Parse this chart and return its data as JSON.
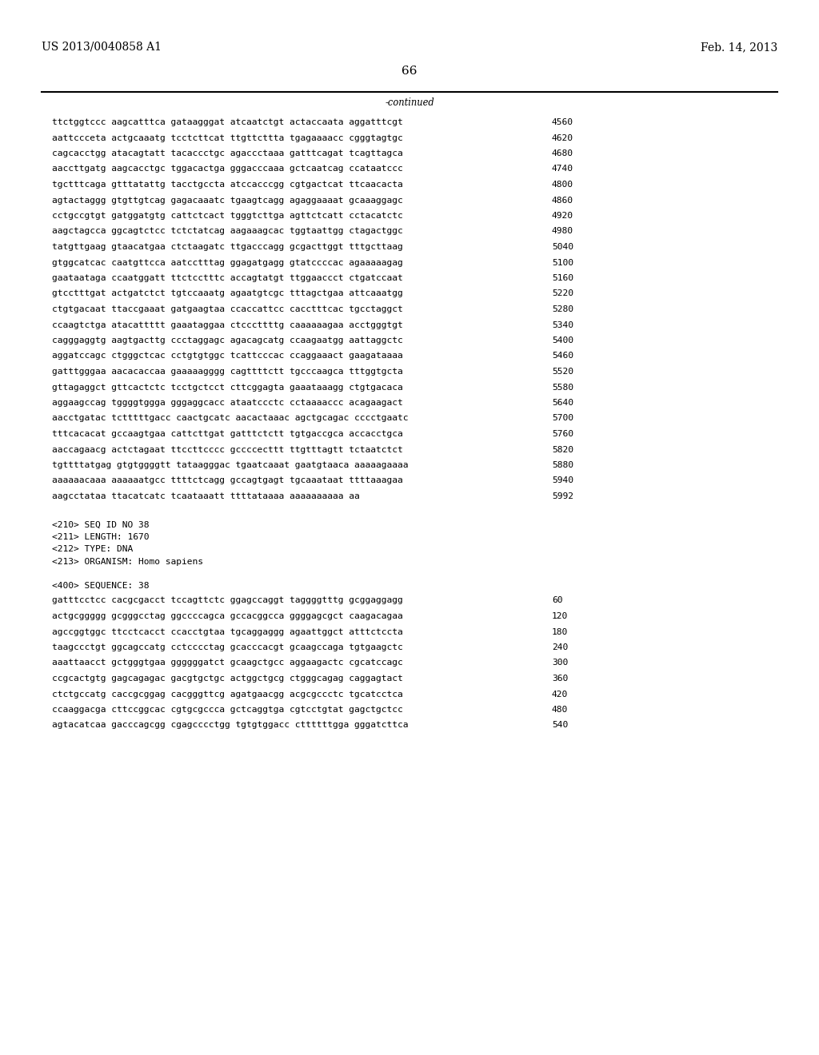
{
  "header_left": "US 2013/0040858 A1",
  "header_right": "Feb. 14, 2013",
  "page_number": "66",
  "continued_text": "-continued",
  "background_color": "#ffffff",
  "text_color": "#000000",
  "sequence_lines_top": [
    [
      "ttctggtccc aagcatttca gataagggat atcaatctgt actaccaata aggatttcgt",
      "4560"
    ],
    [
      "aattccceta actgcaaatg tcctcttcat ttgttcttta tgagaaaacc cgggtagtgc",
      "4620"
    ],
    [
      "cagcacctgg atacagtatt tacaccctgc agaccctaaa gatttcagat tcagttagca",
      "4680"
    ],
    [
      "aaccttgatg aagcacctgc tggacactga gggacccaaa gctcaatcag ccataatccc",
      "4740"
    ],
    [
      "tgctttcaga gtttatattg tacctgccta atccacccgg cgtgactcat ttcaacacta",
      "4800"
    ],
    [
      "agtactaggg gtgttgtcag gagacaaatc tgaagtcagg agaggaaaat gcaaaggagc",
      "4860"
    ],
    [
      "cctgccgtgt gatggatgtg cattctcact tgggtcttga agttctcatt cctacatctc",
      "4920"
    ],
    [
      "aagctagcca ggcagtctcc tctctatcag aagaaagcac tggtaattgg ctagactggc",
      "4980"
    ],
    [
      "tatgttgaag gtaacatgaa ctctaagatc ttgacccagg gcgacttggt tttgcttaag",
      "5040"
    ],
    [
      "gtggcatcac caatgttcca aatcctttag ggagatgagg gtatccccac agaaaaagag",
      "5100"
    ],
    [
      "gaataataga ccaatggatt ttctcctttc accagtatgt ttggaaccct ctgatccaat",
      "5160"
    ],
    [
      "gtcctttgat actgatctct tgtccaaatg agaatgtcgc tttagctgaa attcaaatgg",
      "5220"
    ],
    [
      "ctgtgacaat ttaccgaaat gatgaagtaa ccaccattcc cacctttcac tgcctaggct",
      "5280"
    ],
    [
      "ccaagtctga atacattttt gaaataggaa ctcccttttg caaaaaagaa acctgggtgt",
      "5340"
    ],
    [
      "cagggaggtg aagtgacttg ccctaggagc agacagcatg ccaagaatgg aattaggctc",
      "5400"
    ],
    [
      "aggatccagc ctgggctcac cctgtgtggc tcattcccac ccaggaaact gaagataaaa",
      "5460"
    ],
    [
      "gatttgggaa aacacaccaa gaaaaagggg cagttttctt tgcccaagca tttggtgcta",
      "5520"
    ],
    [
      "gttagaggct gttcactctc tcctgctcct cttcggagta gaaataaagg ctgtgacaca",
      "5580"
    ],
    [
      "aggaagccag tggggtggga gggaggcacc ataatccctc cctaaaaccc acagaagact",
      "5640"
    ],
    [
      "aacctgatac tctttttgacc caactgcatc aacactaaac agctgcagac cccctgaatc",
      "5700"
    ],
    [
      "tttcacacat gccaagtgaa cattcttgat gatttctctt tgtgaccgca accacctgca",
      "5760"
    ],
    [
      "aaccagaacg actctagaat ttccttcccc gccccecttt ttgtttagtt tctaatctct",
      "5820"
    ],
    [
      "tgttttatgag gtgtggggtt tataagggac tgaatcaaat gaatgtaaca aaaaagaaaa",
      "5880"
    ],
    [
      "aaaaaacaaa aaaaaatgcc ttttctcagg gccagtgagt tgcaaataat ttttaaagaa",
      "5940"
    ],
    [
      "aagcctataa ttacatcatc tcaataaatt ttttataaaa aaaaaaaaaa aa",
      "5992"
    ]
  ],
  "metadata_lines": [
    "<210> SEQ ID NO 38",
    "<211> LENGTH: 1670",
    "<212> TYPE: DNA",
    "<213> ORGANISM: Homo sapiens"
  ],
  "sequence_label": "<400> SEQUENCE: 38",
  "sequence_lines_bottom": [
    [
      "gatttcctcc cacgcgacct tccagttctc ggagccaggt taggggtttg gcggaggagg",
      "60"
    ],
    [
      "actgcggggg gcgggcctag ggccccagca gccacggcca ggggagcgct caagacagaa",
      "120"
    ],
    [
      "agccggtggc ttcctcacct ccacctgtaa tgcaggaggg agaattggct atttctccta",
      "180"
    ],
    [
      "taagccctgt ggcagccatg cctcccctag gcacccacgt gcaagccaga tgtgaagctc",
      "240"
    ],
    [
      "aaattaacct gctgggtgaa ggggggatct gcaagctgcc aggaagactc cgcatccagc",
      "300"
    ],
    [
      "ccgcactgtg gagcagagac gacgtgctgc actggctgcg ctgggcagag caggagtact",
      "360"
    ],
    [
      "ctctgccatg caccgcggag cacgggttcg agatgaacgg acgcgccctc tgcatcctca",
      "420"
    ],
    [
      "ccaaggacga cttccggcac cgtgcgccca gctcaggtga cgtcctgtat gagctgctcc",
      "480"
    ],
    [
      "agtacatcaa gacccagcgg cgagcccctgg tgtgtggacc cttttttgga gggatcttca",
      "540"
    ]
  ]
}
